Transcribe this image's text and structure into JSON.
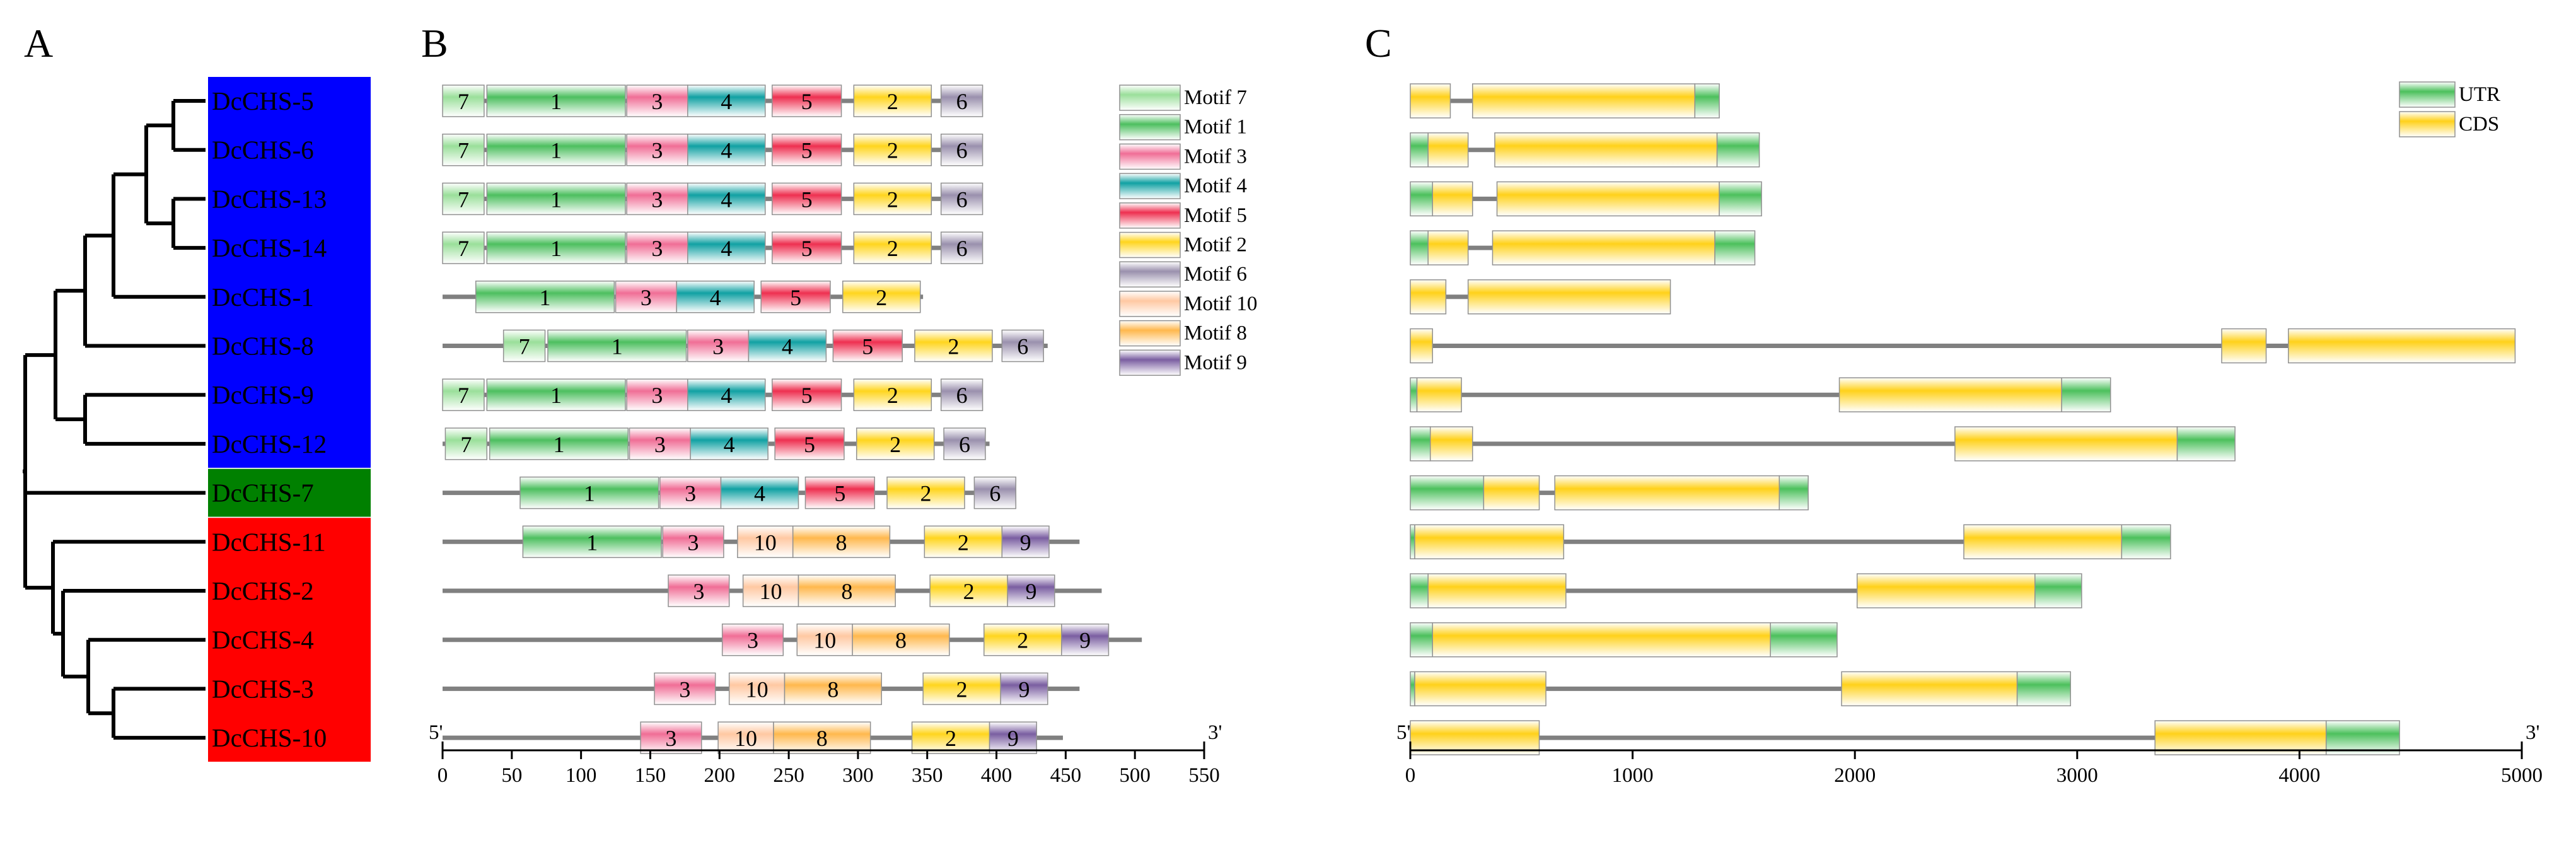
{
  "panels": [
    "A",
    "B",
    "C"
  ],
  "colors": {
    "blue_clade": "#0000ff",
    "green_clade": "#008000",
    "red_clade": "#ff0000",
    "line": "#808080",
    "motif_1": "#4dbf5f",
    "motif_2": "#ffd51e",
    "motif_3": "#f06e96",
    "motif_4": "#11a1a3",
    "motif_5": "#ee3050",
    "motif_6": "#9a90ad",
    "motif_7": "#9adf9a",
    "motif_8": "#ffb84d",
    "motif_9": "#7a5ea1",
    "motif_10": "#ffc8a2",
    "utr": "#4cc05c",
    "cds": "#ffd11a"
  },
  "genes": [
    "DcCHS-5",
    "DcCHS-6",
    "DcCHS-13",
    "DcCHS-14",
    "DcCHS-1",
    "DcCHS-8",
    "DcCHS-9",
    "DcCHS-12",
    "DcCHS-7",
    "DcCHS-11",
    "DcCHS-2",
    "DcCHS-4",
    "DcCHS-3",
    "DcCHS-10"
  ],
  "clades": [
    {
      "name": "blue",
      "from": 0,
      "to": 7
    },
    {
      "name": "green",
      "from": 8,
      "to": 8
    },
    {
      "name": "red",
      "from": 9,
      "to": 13
    }
  ],
  "motif_legend": [
    "Motif 7",
    "Motif 1",
    "Motif 3",
    "Motif 4",
    "Motif 5",
    "Motif 2",
    "Motif 6",
    "Motif 10",
    "Motif 8",
    "Motif 9"
  ],
  "motif_legend_ids": [
    7,
    1,
    3,
    4,
    5,
    2,
    6,
    10,
    8,
    9
  ],
  "gene_legend": [
    "UTR",
    "CDS"
  ],
  "axis_b": {
    "start_label": "5'",
    "end_label": "3'",
    "ticks": [
      0,
      50,
      100,
      150,
      200,
      250,
      300,
      350,
      400,
      450,
      500,
      550
    ],
    "max": 550
  },
  "axis_c": {
    "start_label": "5'",
    "end_label": "3'",
    "ticks": [
      0,
      1000,
      2000,
      3000,
      4000,
      5000
    ],
    "max": 5000
  },
  "motifs": [
    {
      "length": 390,
      "motifs": [
        [
          7,
          0,
          30
        ],
        [
          1,
          32,
          132
        ],
        [
          3,
          133,
          177
        ],
        [
          4,
          177,
          233
        ],
        [
          5,
          238,
          288
        ],
        [
          2,
          297,
          353
        ],
        [
          6,
          360,
          390
        ]
      ]
    },
    {
      "length": 390,
      "motifs": [
        [
          7,
          0,
          30
        ],
        [
          1,
          32,
          132
        ],
        [
          3,
          133,
          177
        ],
        [
          4,
          177,
          233
        ],
        [
          5,
          238,
          288
        ],
        [
          2,
          297,
          353
        ],
        [
          6,
          360,
          390
        ]
      ]
    },
    {
      "length": 390,
      "motifs": [
        [
          7,
          0,
          30
        ],
        [
          1,
          32,
          132
        ],
        [
          3,
          133,
          177
        ],
        [
          4,
          177,
          233
        ],
        [
          5,
          238,
          288
        ],
        [
          2,
          297,
          353
        ],
        [
          6,
          360,
          390
        ]
      ]
    },
    {
      "length": 390,
      "motifs": [
        [
          7,
          0,
          30
        ],
        [
          1,
          32,
          132
        ],
        [
          3,
          133,
          177
        ],
        [
          4,
          177,
          233
        ],
        [
          5,
          238,
          288
        ],
        [
          2,
          297,
          353
        ],
        [
          6,
          360,
          390
        ]
      ]
    },
    {
      "length": 347,
      "motifs": [
        [
          1,
          24,
          124
        ],
        [
          3,
          125,
          169
        ],
        [
          4,
          169,
          225
        ],
        [
          5,
          230,
          280
        ],
        [
          2,
          289,
          345
        ]
      ]
    },
    {
      "length": 437,
      "motifs": [
        [
          7,
          44,
          74
        ],
        [
          1,
          76,
          176
        ],
        [
          3,
          177,
          221
        ],
        [
          4,
          221,
          277
        ],
        [
          5,
          282,
          332
        ],
        [
          2,
          341,
          397
        ],
        [
          6,
          404,
          434
        ]
      ]
    },
    {
      "length": 390,
      "motifs": [
        [
          7,
          0,
          30
        ],
        [
          1,
          32,
          132
        ],
        [
          3,
          133,
          177
        ],
        [
          4,
          177,
          233
        ],
        [
          5,
          238,
          288
        ],
        [
          2,
          297,
          353
        ],
        [
          6,
          360,
          390
        ]
      ]
    },
    {
      "length": 395,
      "motifs": [
        [
          7,
          2,
          32
        ],
        [
          1,
          34,
          134
        ],
        [
          3,
          135,
          179
        ],
        [
          4,
          179,
          235
        ],
        [
          5,
          240,
          290
        ],
        [
          2,
          299,
          355
        ],
        [
          6,
          362,
          392
        ]
      ]
    },
    {
      "length": 412,
      "motifs": [
        [
          1,
          56,
          156
        ],
        [
          3,
          157,
          201
        ],
        [
          4,
          201,
          257
        ],
        [
          5,
          262,
          312
        ],
        [
          2,
          321,
          377
        ],
        [
          6,
          384,
          414
        ]
      ]
    },
    {
      "length": 460,
      "motifs": [
        [
          1,
          58,
          158
        ],
        [
          3,
          159,
          203
        ],
        [
          10,
          213,
          253
        ],
        [
          8,
          253,
          323
        ],
        [
          2,
          348,
          404
        ],
        [
          9,
          404,
          438
        ]
      ]
    },
    {
      "length": 476,
      "motifs": [
        [
          3,
          163,
          207
        ],
        [
          10,
          217,
          257
        ],
        [
          8,
          257,
          327
        ],
        [
          2,
          352,
          408
        ],
        [
          9,
          408,
          442
        ]
      ]
    },
    {
      "length": 505,
      "motifs": [
        [
          3,
          202,
          246
        ],
        [
          10,
          256,
          296
        ],
        [
          8,
          296,
          366
        ],
        [
          2,
          391,
          447
        ],
        [
          9,
          447,
          481
        ]
      ]
    },
    {
      "length": 460,
      "motifs": [
        [
          3,
          153,
          197
        ],
        [
          10,
          207,
          247
        ],
        [
          8,
          247,
          317
        ],
        [
          2,
          347,
          403
        ],
        [
          9,
          403,
          437
        ]
      ]
    },
    {
      "length": 448,
      "motifs": [
        [
          3,
          143,
          187
        ],
        [
          10,
          199,
          239
        ],
        [
          8,
          239,
          309
        ],
        [
          2,
          339,
          395
        ],
        [
          9,
          395,
          429
        ]
      ]
    }
  ],
  "structures": [
    {
      "length": 1390,
      "parts": [
        [
          "cds",
          0,
          180
        ],
        [
          "cds",
          280,
          1280
        ],
        [
          "utr",
          1280,
          1390
        ]
      ]
    },
    {
      "length": 1570,
      "parts": [
        [
          "utr",
          0,
          80
        ],
        [
          "cds",
          80,
          260
        ],
        [
          "cds",
          380,
          1380
        ],
        [
          "utr",
          1380,
          1570
        ]
      ]
    },
    {
      "length": 1580,
      "parts": [
        [
          "utr",
          0,
          100
        ],
        [
          "cds",
          100,
          280
        ],
        [
          "cds",
          390,
          1390
        ],
        [
          "utr",
          1390,
          1580
        ]
      ]
    },
    {
      "length": 1550,
      "parts": [
        [
          "utr",
          0,
          80
        ],
        [
          "cds",
          80,
          260
        ],
        [
          "cds",
          370,
          1370
        ],
        [
          "utr",
          1370,
          1550
        ]
      ]
    },
    {
      "length": 1170,
      "parts": [
        [
          "cds",
          0,
          160
        ],
        [
          "cds",
          260,
          1170
        ]
      ]
    },
    {
      "length": 4970,
      "parts": [
        [
          "cds",
          0,
          100
        ],
        [
          "cds",
          3650,
          3850
        ],
        [
          "cds",
          3950,
          4970
        ]
      ]
    },
    {
      "length": 3150,
      "parts": [
        [
          "utr",
          0,
          30
        ],
        [
          "cds",
          30,
          230
        ],
        [
          "cds",
          1930,
          2930
        ],
        [
          "utr",
          2930,
          3150
        ]
      ]
    },
    {
      "length": 3710,
      "parts": [
        [
          "utr",
          0,
          90
        ],
        [
          "cds",
          90,
          280
        ],
        [
          "cds",
          2450,
          3450
        ],
        [
          "utr",
          3450,
          3710
        ]
      ]
    },
    {
      "length": 1790,
      "parts": [
        [
          "utr",
          0,
          330
        ],
        [
          "cds",
          330,
          580
        ],
        [
          "cds",
          650,
          1660
        ],
        [
          "utr",
          1660,
          1790
        ]
      ]
    },
    {
      "length": 3420,
      "parts": [
        [
          "utr",
          0,
          20
        ],
        [
          "cds",
          20,
          690
        ],
        [
          "cds",
          2490,
          3200
        ],
        [
          "utr",
          3200,
          3420
        ]
      ]
    },
    {
      "length": 3020,
      "parts": [
        [
          "utr",
          0,
          80
        ],
        [
          "cds",
          80,
          700
        ],
        [
          "cds",
          2010,
          2810
        ],
        [
          "utr",
          2810,
          3020
        ]
      ]
    },
    {
      "length": 1920,
      "parts": [
        [
          "utr",
          0,
          100
        ],
        [
          "cds",
          100,
          1620
        ],
        [
          "utr",
          1620,
          1920
        ]
      ]
    },
    {
      "length": 2970,
      "parts": [
        [
          "utr",
          0,
          20
        ],
        [
          "cds",
          20,
          610
        ],
        [
          "cds",
          1940,
          2730
        ],
        [
          "utr",
          2730,
          2970
        ]
      ]
    },
    {
      "length": 4450,
      "parts": [
        [
          "cds",
          0,
          580
        ],
        [
          "cds",
          3350,
          4120
        ],
        [
          "utr",
          4120,
          4450
        ]
      ]
    }
  ]
}
